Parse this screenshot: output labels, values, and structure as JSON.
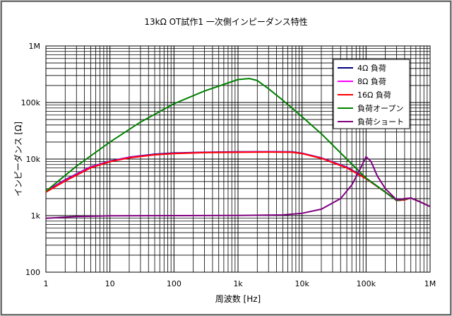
{
  "chart_data": {
    "type": "line",
    "title": "13kΩ OT試作1 一次側インピーダンス特性",
    "xlabel": "周波数 [Hz]",
    "ylabel": "インピーダンス [Ω]",
    "xscale": "log",
    "yscale": "log",
    "xlim": [
      1,
      1000000
    ],
    "ylim": [
      100,
      1000000
    ],
    "x_tick_labels": [
      "1",
      "10",
      "100",
      "1k",
      "10k",
      "100k",
      "1M"
    ],
    "y_tick_labels": [
      "100",
      "1k",
      "10k",
      "100k",
      "1M"
    ],
    "grid": true,
    "legend_position": "top-right",
    "series": [
      {
        "name": "4Ω 負荷",
        "color": "#000080",
        "points": [
          [
            1,
            2700
          ],
          [
            2,
            4300
          ],
          [
            5,
            7300
          ],
          [
            10,
            9200
          ],
          [
            20,
            10800
          ],
          [
            50,
            12200
          ],
          [
            100,
            12800
          ],
          [
            300,
            13200
          ],
          [
            1000,
            13400
          ],
          [
            3000,
            13500
          ],
          [
            7000,
            13400
          ],
          [
            10000,
            12700
          ],
          [
            20000,
            10500
          ],
          [
            50000,
            7200
          ],
          [
            100000,
            4600
          ],
          [
            200000,
            2600
          ],
          [
            300000,
            1850
          ],
          [
            400000,
            1900
          ],
          [
            500000,
            2050
          ],
          [
            700000,
            1750
          ],
          [
            1000000,
            1450
          ]
        ]
      },
      {
        "name": "8Ω 負荷",
        "color": "#ff00ff",
        "points": [
          [
            1,
            2650
          ],
          [
            2,
            4200
          ],
          [
            5,
            7200
          ],
          [
            10,
            9100
          ],
          [
            20,
            10700
          ],
          [
            50,
            12000
          ],
          [
            100,
            12600
          ],
          [
            300,
            13100
          ],
          [
            1000,
            13300
          ],
          [
            3000,
            13400
          ],
          [
            7000,
            13300
          ],
          [
            10000,
            12600
          ],
          [
            20000,
            10400
          ],
          [
            50000,
            7100
          ],
          [
            100000,
            4500
          ],
          [
            200000,
            2600
          ],
          [
            300000,
            1850
          ],
          [
            400000,
            1900
          ],
          [
            500000,
            2050
          ],
          [
            700000,
            1750
          ],
          [
            1000000,
            1450
          ]
        ]
      },
      {
        "name": "16Ω 負荷",
        "color": "#ff0000",
        "points": [
          [
            1,
            2600
          ],
          [
            2,
            4100
          ],
          [
            5,
            7000
          ],
          [
            10,
            9000
          ],
          [
            20,
            10500
          ],
          [
            50,
            11900
          ],
          [
            100,
            12500
          ],
          [
            300,
            13000
          ],
          [
            1000,
            13200
          ],
          [
            3000,
            13300
          ],
          [
            7000,
            13200
          ],
          [
            10000,
            12500
          ],
          [
            20000,
            10300
          ],
          [
            50000,
            7000
          ],
          [
            100000,
            4500
          ],
          [
            200000,
            2600
          ],
          [
            300000,
            1850
          ],
          [
            400000,
            1900
          ],
          [
            500000,
            2050
          ],
          [
            700000,
            1750
          ],
          [
            1000000,
            1450
          ]
        ]
      },
      {
        "name": "負荷オープン",
        "color": "#008000",
        "points": [
          [
            1,
            2700
          ],
          [
            3,
            7500
          ],
          [
            10,
            20000
          ],
          [
            30,
            45000
          ],
          [
            100,
            95000
          ],
          [
            300,
            160000
          ],
          [
            1000,
            255000
          ],
          [
            1500,
            265000
          ],
          [
            2000,
            245000
          ],
          [
            3000,
            175000
          ],
          [
            5000,
            110000
          ],
          [
            10000,
            56000
          ],
          [
            20000,
            28000
          ],
          [
            50000,
            10000
          ],
          [
            100000,
            4600
          ],
          [
            200000,
            2600
          ],
          [
            300000,
            1850
          ],
          [
            400000,
            1950
          ],
          [
            500000,
            2050
          ],
          [
            700000,
            1750
          ],
          [
            1000000,
            1450
          ]
        ]
      },
      {
        "name": "負荷ショート",
        "color": "#800080",
        "points": [
          [
            1,
            900
          ],
          [
            3,
            960
          ],
          [
            10,
            990
          ],
          [
            100,
            1000
          ],
          [
            1000,
            1010
          ],
          [
            5000,
            1030
          ],
          [
            10000,
            1100
          ],
          [
            20000,
            1300
          ],
          [
            40000,
            2000
          ],
          [
            60000,
            3500
          ],
          [
            80000,
            6500
          ],
          [
            100000,
            11000
          ],
          [
            120000,
            9000
          ],
          [
            150000,
            5000
          ],
          [
            200000,
            3000
          ],
          [
            300000,
            1900
          ],
          [
            400000,
            2000
          ],
          [
            500000,
            2050
          ],
          [
            700000,
            1750
          ],
          [
            1000000,
            1450
          ]
        ]
      }
    ]
  }
}
